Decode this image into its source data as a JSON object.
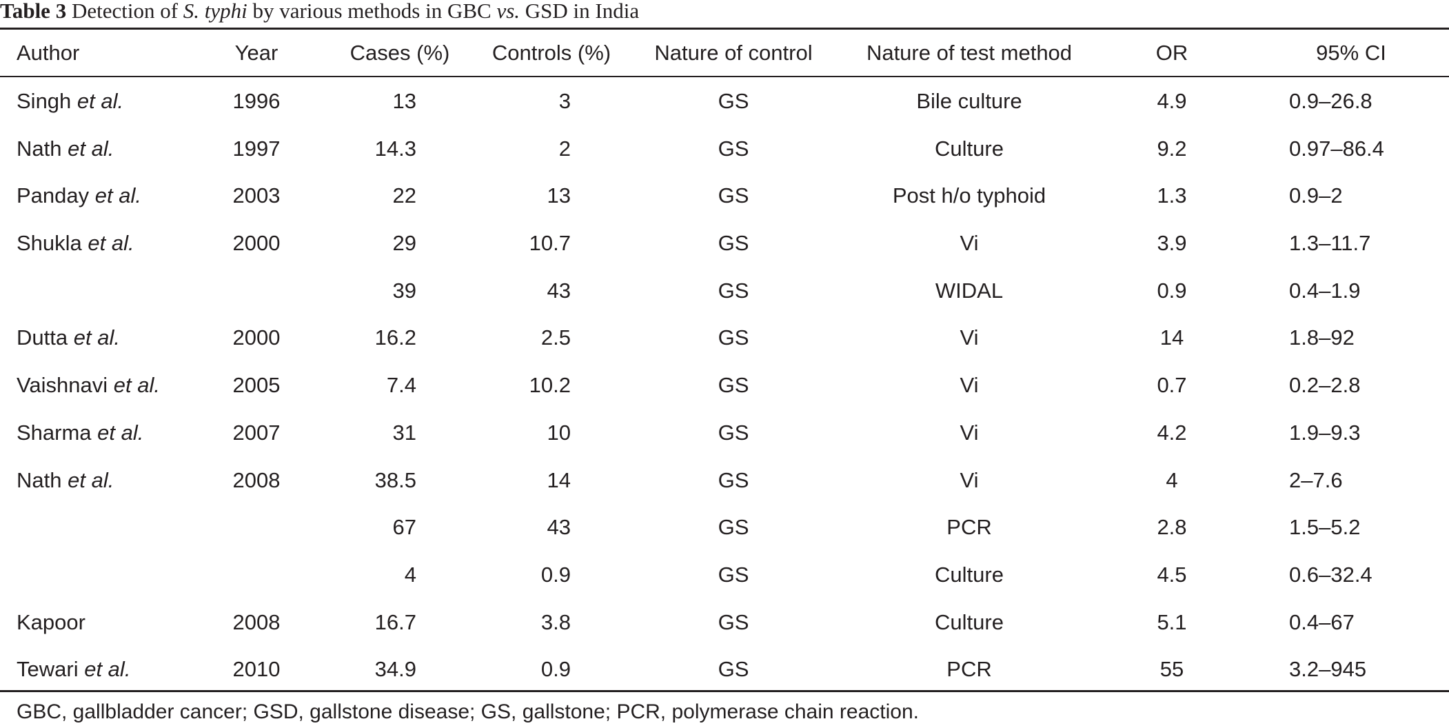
{
  "caption": {
    "label": "Table 3",
    "text_before": " Detection of ",
    "organism": "S. typhi",
    "text_middle": " by various methods in GBC ",
    "vs": "vs.",
    "text_after": " GSD in India"
  },
  "columns": {
    "author": "Author",
    "year": "Year",
    "cases": "Cases (%)",
    "controls": "Controls (%)",
    "nature_of_control": "Nature of control",
    "nature_of_test_method": "Nature of test method",
    "or": "OR",
    "ci": "95% CI"
  },
  "rows": [
    {
      "author": "Singh",
      "etal": "et al.",
      "year": "1996",
      "cases": "13",
      "controls": "3",
      "control": "GS",
      "method": "Bile culture",
      "or": "4.9",
      "ci": "0.9–26.8"
    },
    {
      "author": "Nath",
      "etal": "et al.",
      "year": "1997",
      "cases": "14.3",
      "controls": "2",
      "control": "GS",
      "method": "Culture",
      "or": "9.2",
      "ci": "0.97–86.4"
    },
    {
      "author": "Panday",
      "etal": "et al.",
      "year": "2003",
      "cases": "22",
      "controls": "13",
      "control": "GS",
      "method": "Post h/o typhoid",
      "or": "1.3",
      "ci": "0.9–2"
    },
    {
      "author": "Shukla",
      "etal": "et al.",
      "year": "2000",
      "cases": "29",
      "controls": "10.7",
      "control": "GS",
      "method": "Vi",
      "or": "3.9",
      "ci": "1.3–11.7"
    },
    {
      "author": "",
      "etal": "",
      "year": "",
      "cases": "39",
      "controls": "43",
      "control": "GS",
      "method": "WIDAL",
      "or": "0.9",
      "ci": "0.4–1.9"
    },
    {
      "author": "Dutta",
      "etal": "et al.",
      "year": "2000",
      "cases": "16.2",
      "controls": "2.5",
      "control": "GS",
      "method": "Vi",
      "or": "14",
      "ci": "1.8–92"
    },
    {
      "author": "Vaishnavi",
      "etal": "et al.",
      "year": "2005",
      "cases": "7.4",
      "controls": "10.2",
      "control": "GS",
      "method": "Vi",
      "or": "0.7",
      "ci": "0.2–2.8"
    },
    {
      "author": "Sharma",
      "etal": "et al.",
      "year": "2007",
      "cases": "31",
      "controls": "10",
      "control": "GS",
      "method": "Vi",
      "or": "4.2",
      "ci": "1.9–9.3"
    },
    {
      "author": "Nath",
      "etal": "et al.",
      "year": "2008",
      "cases": "38.5",
      "controls": "14",
      "control": "GS",
      "method": "Vi",
      "or": "4",
      "ci": "2–7.6"
    },
    {
      "author": "",
      "etal": "",
      "year": "",
      "cases": "67",
      "controls": "43",
      "control": "GS",
      "method": "PCR",
      "or": "2.8",
      "ci": "1.5–5.2"
    },
    {
      "author": "",
      "etal": "",
      "year": "",
      "cases": "4",
      "controls": "0.9",
      "control": "GS",
      "method": "Culture",
      "or": "4.5",
      "ci": "0.6–32.4"
    },
    {
      "author": "Kapoor",
      "etal": "",
      "year": "2008",
      "cases": "16.7",
      "controls": "3.8",
      "control": "GS",
      "method": "Culture",
      "or": "5.1",
      "ci": "0.4–67"
    },
    {
      "author": "Tewari",
      "etal": "et al.",
      "year": "2010",
      "cases": "34.9",
      "controls": "0.9",
      "control": "GS",
      "method": "PCR",
      "or": "55",
      "ci": "3.2–945"
    }
  ],
  "footnote": "GBC, gallbladder cancer; GSD, gallstone disease; GS, gallstone; PCR, polymerase chain reaction."
}
